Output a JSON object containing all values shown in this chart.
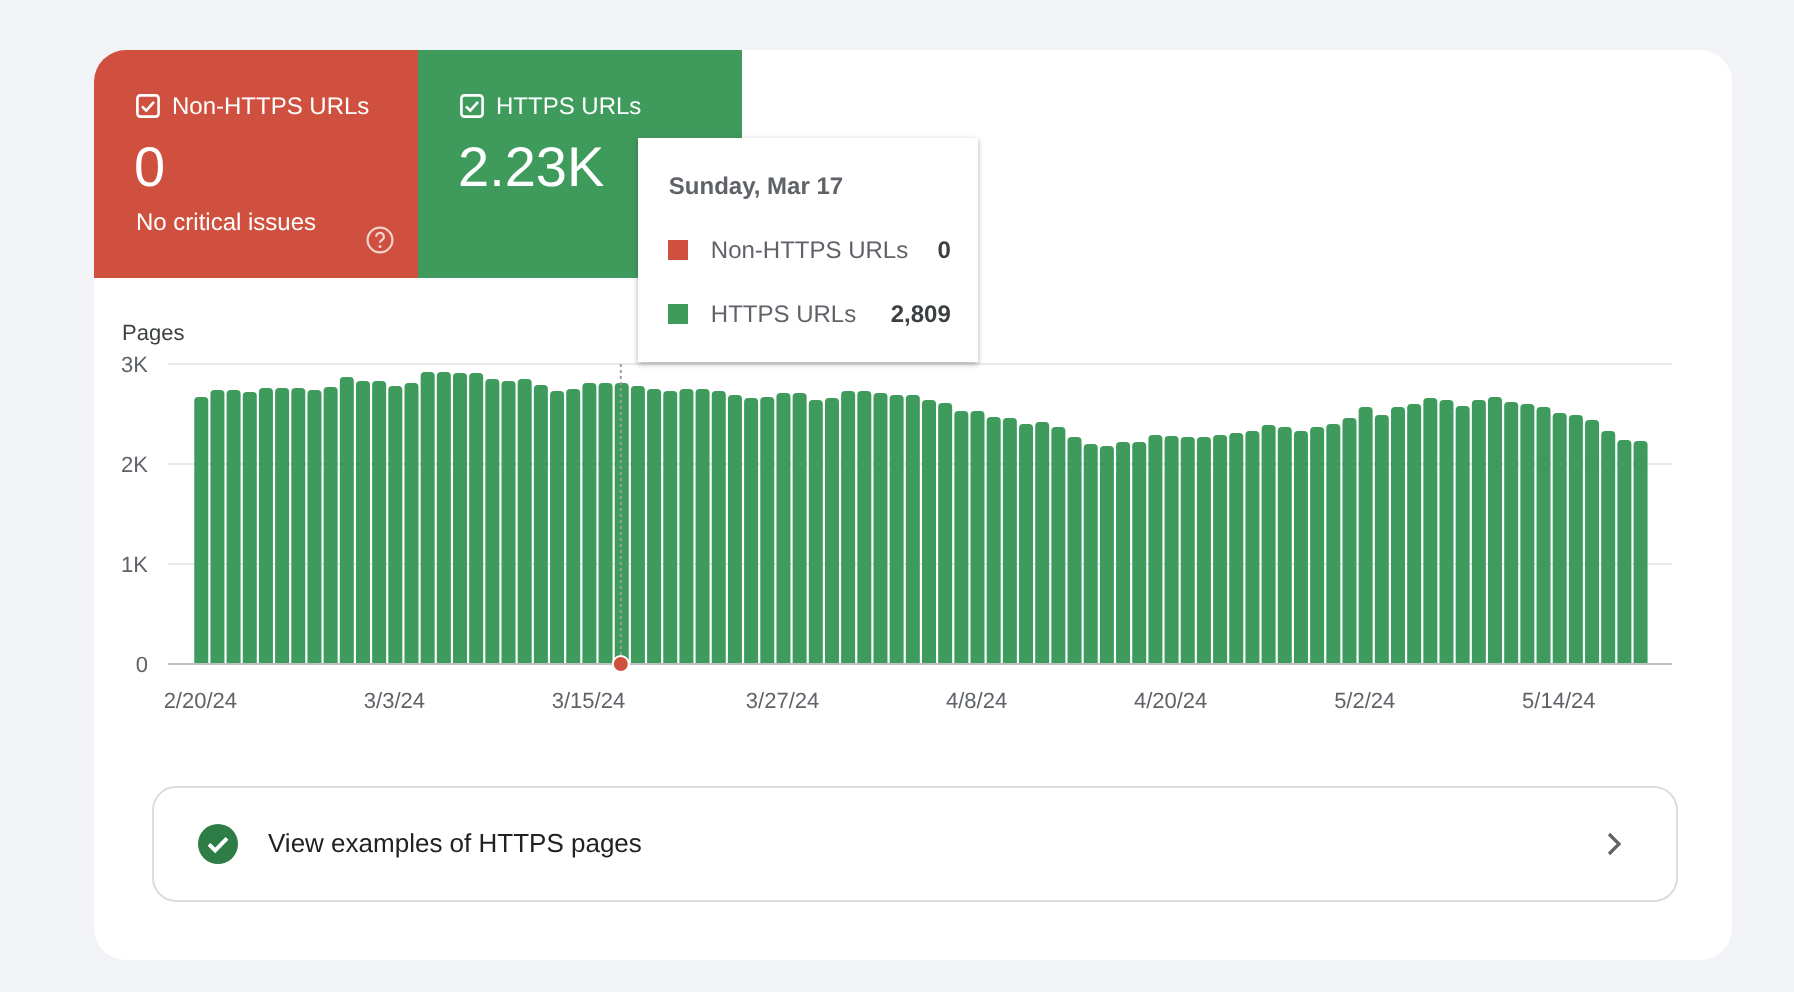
{
  "chart_data": {
    "type": "bar",
    "ylabel": "Pages",
    "x": [
      "--02-20",
      "--02-21",
      "--02-22",
      "--02-23",
      "--02-24",
      "--02-25",
      "--02-26",
      "--02-27",
      "--02-28",
      "--02-29",
      "--03-01",
      "--03-02",
      "--03-03",
      "--03-04",
      "--03-05",
      "--03-06",
      "--03-07",
      "--03-08",
      "--03-09",
      "--03-10",
      "--03-11",
      "--03-12",
      "--03-13",
      "--03-14",
      "--03-15",
      "--03-16",
      "--03-17",
      "--03-18",
      "--03-19",
      "--03-20",
      "--03-21",
      "--03-22",
      "--03-23",
      "--03-24",
      "--03-25",
      "--03-26",
      "--03-27",
      "--03-28",
      "--03-29",
      "--03-30",
      "--03-31",
      "--04-01",
      "--04-02",
      "--04-03",
      "--04-04",
      "--04-05",
      "--04-06",
      "--04-07",
      "--04-08",
      "--04-09",
      "--04-10",
      "--04-11",
      "--04-12",
      "--04-13",
      "--04-14",
      "--04-15",
      "--04-16",
      "--04-17",
      "--04-18",
      "--04-19",
      "--04-20",
      "--04-21",
      "--04-22",
      "--04-23",
      "--04-24",
      "--04-25",
      "--04-26",
      "--04-27",
      "--04-28",
      "--04-29",
      "--04-30",
      "--05-01",
      "--05-02",
      "--05-03",
      "--05-04",
      "--05-05",
      "--05-06",
      "--05-07",
      "--05-08",
      "--05-09",
      "--05-10",
      "--05-11",
      "--05-12",
      "--05-13",
      "--05-14",
      "--05-15",
      "--05-16",
      "--05-17",
      "--05-18",
      "--05-19"
    ],
    "xlim": [
      "--02-18",
      "--05-21"
    ],
    "xticks": [
      {
        "value": "--02-20",
        "label": "2/20/24"
      },
      {
        "value": "--03-03",
        "label": "3/3/24"
      },
      {
        "value": "--03-15",
        "label": "3/15/24"
      },
      {
        "value": "--03-27",
        "label": "3/27/24"
      },
      {
        "value": "--04-08",
        "label": "4/8/24"
      },
      {
        "value": "--04-20",
        "label": "4/20/24"
      },
      {
        "value": "--05-02",
        "label": "5/2/24"
      },
      {
        "value": "--05-14",
        "label": "5/14/24"
      }
    ],
    "ylim": [
      0,
      3000
    ],
    "yticks": [
      0,
      {
        "value": 1000,
        "label": "1K"
      },
      {
        "value": 2000,
        "label": "2K"
      },
      {
        "value": 3000,
        "label": "3K"
      }
    ],
    "series": [
      {
        "name": "Non-HTTPS URLs",
        "color": "#d0503f",
        "values": [
          0,
          0,
          0,
          0,
          0,
          0,
          0,
          0,
          0,
          0,
          0,
          0,
          0,
          0,
          0,
          0,
          0,
          0,
          0,
          0,
          0,
          0,
          0,
          0,
          0,
          0,
          0,
          0,
          0,
          0,
          0,
          0,
          0,
          0,
          0,
          0,
          0,
          0,
          0,
          0,
          0,
          0,
          0,
          0,
          0,
          0,
          0,
          0,
          0,
          0,
          0,
          0,
          0,
          0,
          0,
          0,
          0,
          0,
          0,
          0,
          0,
          0,
          0,
          0,
          0,
          0,
          0,
          0,
          0,
          0,
          0,
          0,
          0,
          0,
          0,
          0,
          0,
          0,
          0,
          0,
          0,
          0,
          0,
          0,
          0,
          0,
          0,
          0,
          0,
          0
        ]
      },
      {
        "name": "HTTPS URLs",
        "color": "#3f9b5c",
        "values": [
          2670,
          2740,
          2740,
          2720,
          2760,
          2760,
          2760,
          2740,
          2770,
          2870,
          2830,
          2830,
          2780,
          2810,
          2920,
          2920,
          2910,
          2910,
          2850,
          2830,
          2850,
          2790,
          2730,
          2750,
          2810,
          2810,
          2809,
          2780,
          2750,
          2730,
          2750,
          2750,
          2730,
          2690,
          2660,
          2670,
          2710,
          2710,
          2640,
          2660,
          2730,
          2730,
          2710,
          2690,
          2690,
          2640,
          2610,
          2530,
          2530,
          2470,
          2460,
          2400,
          2420,
          2370,
          2270,
          2200,
          2180,
          2220,
          2220,
          2290,
          2280,
          2270,
          2270,
          2290,
          2310,
          2330,
          2390,
          2370,
          2330,
          2370,
          2400,
          2460,
          2570,
          2490,
          2570,
          2600,
          2660,
          2640,
          2580,
          2640,
          2670,
          2620,
          2600,
          2570,
          2510,
          2490,
          2440,
          2330,
          2240,
          2230
        ]
      }
    ],
    "stacked": true,
    "grid": "y",
    "legend": "top left",
    "ref_lines": [
      {
        "axis": "x",
        "value": "--03-17",
        "color": "#9aa0a6",
        "line_style": "dotted"
      }
    ],
    "annotations": [
      "0",
      "No critical issues",
      "2.23K",
      "Sunday, Mar 17",
      "0",
      "2,809",
      "View examples of HTTPS pages"
    ]
  }
}
